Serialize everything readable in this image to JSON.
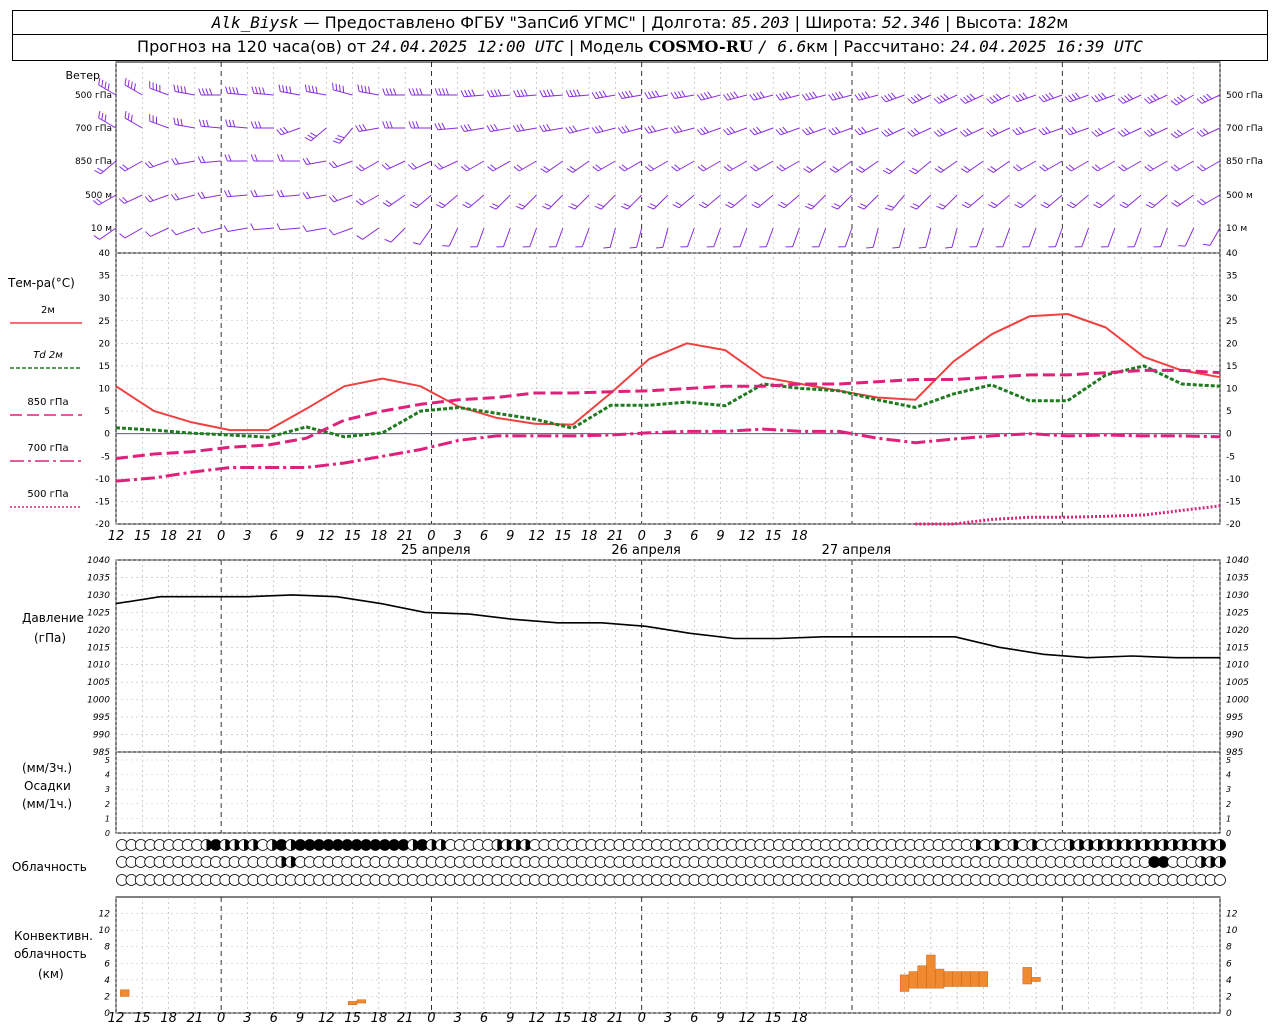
{
  "header": {
    "station": "Alk_Biysk",
    "provider": "— Предоставлено ФГБУ \"ЗапСиб УГМС\"",
    "lon_label": "| Долгота:",
    "lon_value": "85.203",
    "lat_label": "| Широта:",
    "lat_value": "52.346",
    "alt_label": "| Высота:",
    "alt_value": "182",
    "alt_unit": "м",
    "forecast_label": "Прогноз на 120 часа(ов) от",
    "forecast_start": "24.04.2025 12:00 UTC",
    "model_label": "| Модель",
    "model_name": "COSMO-RU",
    "model_res": "/ 6.6",
    "model_res_unit": "км",
    "calc_label": "| Рассчитано:",
    "calc_time": "24.04.2025 16:39 UTC"
  },
  "colors": {
    "wind": "#8a2be2",
    "t2m": "#f04040",
    "td2m": "#207a20",
    "t850": "#e0207a",
    "t700": "#e0207a",
    "t500": "#e0207a",
    "pressure": "#000000",
    "conv": "#f08a30"
  },
  "labels": {
    "wind_title": "Ветер",
    "wind_levels": [
      "500 гПа",
      "700 гПа",
      "850 гПа",
      "500 м",
      "10 м"
    ],
    "temp_title": "Тем-ра(°C)",
    "legend": [
      "2м",
      "Td 2м",
      "850 гПа",
      "700 гПа",
      "500 гПа"
    ],
    "pressure_title": "Давление",
    "pressure_unit": "(гПа)",
    "precip_unit_top": "(мм/3ч.)",
    "precip_title": "Осадки",
    "precip_unit_bottom": "(мм/1ч.)",
    "cloud_title": "Облачность",
    "conv_title_1": "Конвективн.",
    "conv_title_2": "облачность",
    "conv_title_3": "(км)",
    "day_labels": [
      "25 апреля",
      "26 апреля",
      "27 апреля"
    ]
  },
  "chart_data": [
    {
      "type": "line",
      "name": "temperature",
      "x_hours": [
        0,
        3,
        6,
        9,
        12,
        15,
        18,
        21,
        24,
        27,
        30,
        33,
        36,
        39,
        42,
        45,
        48,
        51,
        54,
        57,
        60,
        63,
        66,
        69,
        72,
        75,
        78,
        81,
        84,
        87,
        90,
        93,
        96,
        99,
        102,
        105,
        108,
        111,
        114,
        117,
        120,
        123,
        126
      ],
      "x_tick_labels": [
        "12",
        "15",
        "18",
        "21",
        "0",
        "3",
        "6",
        "9",
        "12",
        "15",
        "18",
        "21",
        "0",
        "3",
        "6",
        "9",
        "12",
        "15",
        "18",
        "21",
        "0",
        "3",
        "6",
        "9",
        "12",
        "15",
        "18"
      ],
      "ylim": [
        -20,
        40
      ],
      "y_ticks": [
        -20,
        -15,
        -10,
        -5,
        0,
        5,
        10,
        15,
        20,
        25,
        30,
        35,
        40
      ],
      "series": [
        {
          "name": "2м",
          "style": "solid",
          "values": [
            10.5,
            5,
            2.5,
            0.8,
            0.8,
            5.5,
            10.5,
            12.2,
            10.5,
            6,
            3.5,
            2.2,
            2,
            9,
            16.5,
            20,
            18.5,
            12.5,
            11,
            9.5,
            8,
            7.5,
            16,
            22,
            26,
            26.5,
            23.5,
            17,
            14,
            12.5
          ]
        },
        {
          "name": "Td 2м",
          "style": "dashed",
          "values": [
            1.3,
            0.8,
            0.1,
            -0.3,
            -0.8,
            1.5,
            -0.7,
            0.2,
            5,
            5.8,
            4.5,
            3.2,
            1.2,
            6.3,
            6.3,
            7,
            6.2,
            11,
            10,
            9.5,
            7.5,
            5.8,
            8.8,
            10.8,
            7.3,
            7.3,
            13,
            15,
            11,
            10.5
          ]
        },
        {
          "name": "850 гПа",
          "style": "longdash",
          "values": [
            -5.5,
            -4.5,
            -4,
            -3,
            -2.5,
            -1,
            3,
            5,
            6.5,
            7.5,
            8,
            9,
            9,
            9.3,
            9.5,
            10,
            10.5,
            10.5,
            11,
            11,
            11.5,
            12,
            12,
            12.5,
            13,
            13,
            13.5,
            14,
            14,
            13.5
          ]
        },
        {
          "name": "700 гПа",
          "style": "dashdot",
          "values": [
            -10.5,
            -9.8,
            -8.5,
            -7.5,
            -7.5,
            -7.5,
            -6.5,
            -5,
            -3.5,
            -1.5,
            -0.5,
            -0.5,
            -0.5,
            -0.3,
            0.2,
            0.5,
            0.5,
            1,
            0.5,
            0.5,
            -1,
            -2,
            -1.2,
            -0.5,
            0,
            -0.5,
            -0.3,
            -0.5,
            -0.5,
            -0.7
          ]
        },
        {
          "name": "500 гПа",
          "style": "dotted",
          "values": [
            null,
            null,
            null,
            null,
            null,
            null,
            null,
            null,
            null,
            null,
            null,
            null,
            null,
            null,
            null,
            null,
            null,
            null,
            null,
            null,
            null,
            -20,
            -20,
            -19,
            -18.5,
            -18.5,
            -18.3,
            -18,
            -17,
            -16
          ]
        }
      ]
    },
    {
      "type": "line",
      "name": "pressure",
      "series_name": "Давление",
      "ylim": [
        985,
        1040
      ],
      "y_ticks": [
        985,
        990,
        995,
        1000,
        1005,
        1010,
        1015,
        1020,
        1025,
        1030,
        1035,
        1040
      ],
      "values": [
        1027.5,
        1029.5,
        1029.5,
        1029.5,
        1030,
        1029.5,
        1027.5,
        1025,
        1024.5,
        1023,
        1022,
        1022,
        1021,
        1019,
        1017.5,
        1017.5,
        1018,
        1018,
        1018,
        1018,
        1015,
        1013,
        1012,
        1012.5,
        1012,
        1012
      ]
    },
    {
      "type": "bar",
      "name": "precipitation",
      "ylim": [
        0,
        5
      ],
      "y_ticks": [
        0,
        1,
        2,
        3,
        4,
        5
      ],
      "values": []
    },
    {
      "type": "table",
      "name": "cloudiness",
      "note": "three rows of cloud-cover symbols per hour",
      "rows": [
        "0000000001211110121222222222222121100000111100000000000000000000000000000000000000000000000101010100011111111111111111",
        "0000000000000000011000000000000000000000000000000000000000000000000000000000000000000000000000000000000000000022000111",
        "0000000000000000000000000000000000000000000000000000000000000000000000000000000000000000000000000000000000000000000000"
      ]
    },
    {
      "type": "bar",
      "name": "convective_cloudiness",
      "ylim": [
        0,
        14
      ],
      "y_ticks": [
        0,
        2,
        4,
        6,
        8,
        10,
        12
      ],
      "bars": [
        {
          "hour": 1,
          "base": 2,
          "top": 2.8
        },
        {
          "hour": 27,
          "base": 1,
          "top": 1.4
        },
        {
          "hour": 28,
          "base": 1.2,
          "top": 1.6
        },
        {
          "hour": 90,
          "base": 2.6,
          "top": 4.6
        },
        {
          "hour": 91,
          "base": 3,
          "top": 5
        },
        {
          "hour": 92,
          "base": 3,
          "top": 5.7
        },
        {
          "hour": 93,
          "base": 3,
          "top": 7
        },
        {
          "hour": 94,
          "base": 3,
          "top": 5.3
        },
        {
          "hour": 95,
          "base": 3.2,
          "top": 5
        },
        {
          "hour": 96,
          "base": 3.2,
          "top": 5
        },
        {
          "hour": 97,
          "base": 3.2,
          "top": 5
        },
        {
          "hour": 98,
          "base": 3.2,
          "top": 5
        },
        {
          "hour": 99,
          "base": 3.2,
          "top": 5
        },
        {
          "hour": 104,
          "base": 3.5,
          "top": 5.5
        },
        {
          "hour": 105,
          "base": 3.8,
          "top": 4.3
        }
      ]
    },
    {
      "type": "scatter",
      "name": "wind_barbs",
      "levels": [
        "500 гПа",
        "700 гПа",
        "850 гПа",
        "500 м",
        "10 м"
      ],
      "dir_deg": [
        [
          300,
          300,
          290,
          280,
          270,
          275,
          275,
          280,
          280,
          285,
          280,
          270,
          270,
          270,
          265,
          265,
          265,
          265,
          265,
          260,
          260,
          260,
          260,
          255,
          255,
          255,
          255,
          255,
          255,
          255,
          250,
          245,
          245,
          245,
          245,
          250,
          250,
          250,
          250,
          245,
          245,
          240,
          245
        ],
        [
          300,
          300,
          290,
          280,
          275,
          275,
          270,
          250,
          230,
          220,
          260,
          270,
          270,
          265,
          260,
          260,
          260,
          260,
          255,
          255,
          255,
          255,
          255,
          250,
          250,
          250,
          250,
          250,
          250,
          250,
          245,
          245,
          245,
          245,
          245,
          250,
          250,
          250,
          245,
          245,
          245,
          240,
          245
        ],
        [
          230,
          240,
          250,
          260,
          265,
          270,
          270,
          270,
          260,
          250,
          240,
          245,
          245,
          245,
          240,
          240,
          240,
          235,
          235,
          240,
          240,
          240,
          240,
          240,
          240,
          240,
          240,
          235,
          235,
          235,
          230,
          230,
          235,
          235,
          235,
          240,
          240,
          240,
          240,
          240,
          240,
          240,
          240
        ],
        [
          240,
          245,
          250,
          255,
          260,
          265,
          265,
          265,
          260,
          250,
          240,
          235,
          230,
          230,
          230,
          225,
          225,
          225,
          225,
          225,
          225,
          225,
          230,
          230,
          230,
          230,
          230,
          225,
          225,
          225,
          220,
          225,
          225,
          230,
          230,
          230,
          230,
          230,
          230,
          230,
          230,
          235,
          240
        ],
        [
          235,
          240,
          245,
          250,
          255,
          260,
          265,
          265,
          260,
          250,
          235,
          225,
          215,
          205,
          200,
          200,
          200,
          200,
          200,
          195,
          195,
          195,
          200,
          200,
          200,
          200,
          200,
          200,
          200,
          195,
          195,
          195,
          195,
          200,
          200,
          200,
          200,
          200,
          200,
          200,
          200,
          205,
          210
        ]
      ],
      "speed_ms": [
        [
          15,
          15,
          15,
          15,
          15,
          15,
          15,
          15,
          15,
          15,
          15,
          15,
          15,
          15,
          15,
          15,
          15,
          15,
          15,
          15,
          15,
          15,
          15,
          15,
          15,
          15,
          15,
          15,
          15,
          15,
          15,
          15,
          15,
          15,
          15,
          15,
          15,
          15,
          15,
          15,
          15,
          15,
          15
        ],
        [
          12,
          12,
          12,
          12,
          12,
          12,
          12,
          12,
          12,
          12,
          12,
          12,
          12,
          12,
          12,
          12,
          12,
          12,
          12,
          12,
          12,
          12,
          12,
          12,
          12,
          12,
          12,
          12,
          12,
          12,
          12,
          12,
          12,
          12,
          12,
          12,
          12,
          12,
          12,
          12,
          12,
          12,
          12
        ],
        [
          8,
          8,
          8,
          8,
          8,
          8,
          8,
          8,
          8,
          8,
          8,
          8,
          8,
          8,
          8,
          8,
          8,
          8,
          8,
          8,
          8,
          8,
          8,
          8,
          8,
          8,
          8,
          8,
          8,
          8,
          8,
          8,
          8,
          8,
          8,
          8,
          8,
          8,
          8,
          8,
          8,
          8,
          8
        ],
        [
          6,
          6,
          6,
          6,
          6,
          6,
          6,
          6,
          6,
          6,
          6,
          6,
          6,
          6,
          6,
          6,
          6,
          6,
          6,
          6,
          6,
          6,
          6,
          6,
          6,
          6,
          6,
          6,
          6,
          6,
          6,
          6,
          6,
          6,
          6,
          6,
          6,
          6,
          6,
          6,
          6,
          6,
          6
        ],
        [
          4,
          4,
          4,
          4,
          4,
          4,
          4,
          4,
          4,
          4,
          4,
          4,
          4,
          4,
          4,
          4,
          4,
          4,
          4,
          4,
          4,
          4,
          4,
          4,
          4,
          4,
          4,
          4,
          4,
          4,
          4,
          4,
          4,
          4,
          4,
          4,
          4,
          4,
          4,
          4,
          4,
          4,
          4
        ]
      ]
    }
  ]
}
